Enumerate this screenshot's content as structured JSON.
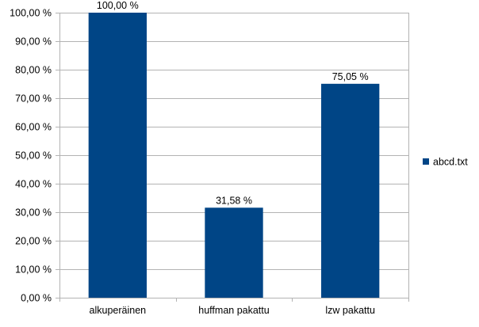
{
  "chart_data": {
    "type": "bar",
    "categories": [
      "alkuperäinen",
      "huffman pakattu",
      "lzw pakattu"
    ],
    "series": [
      {
        "name": "abcd.txt",
        "values": [
          100.0,
          31.58,
          75.05
        ],
        "data_labels": [
          "100,00 %",
          "31,58 %",
          "75,05 %"
        ]
      }
    ],
    "ylim": [
      0,
      100
    ],
    "y_ticks": [
      0,
      10,
      20,
      30,
      40,
      50,
      60,
      70,
      80,
      90,
      100
    ],
    "y_tick_labels": [
      "0,00 %",
      "10,00 %",
      "20,00 %",
      "30,00 %",
      "40,00 %",
      "50,00 %",
      "60,00 %",
      "70,00 %",
      "80,00 %",
      "90,00 %",
      "100,00 %"
    ],
    "title": "",
    "xlabel": "",
    "ylabel": "",
    "grid": true,
    "legend_position": "right",
    "colors": {
      "bar": "#004586",
      "grid": "#b3b3b3",
      "axis": "#b3b3b3"
    }
  }
}
